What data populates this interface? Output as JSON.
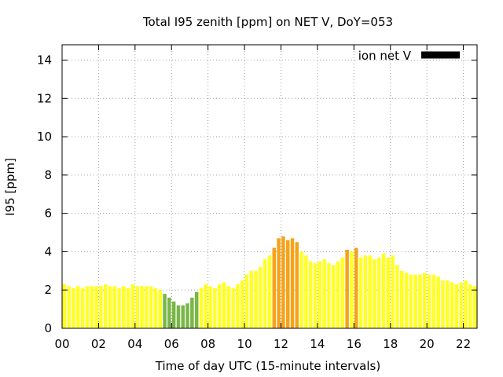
{
  "chart_data": {
    "type": "bar",
    "title": "Total I95 zenith [ppm] on NET V, DoY=053",
    "xlabel": "Time of day UTC (15-minute intervals)",
    "ylabel": "I95 [ppm]",
    "xlim": [
      0,
      22.75
    ],
    "ylim": [
      0,
      14.8
    ],
    "xticks": [
      0,
      2,
      4,
      6,
      8,
      10,
      12,
      14,
      16,
      18,
      20,
      22
    ],
    "xtick_labels": [
      "00",
      "02",
      "04",
      "06",
      "08",
      "10",
      "12",
      "14",
      "16",
      "18",
      "20",
      "22"
    ],
    "yticks": [
      0,
      2,
      4,
      6,
      8,
      10,
      12,
      14
    ],
    "ytick_labels": [
      "0",
      "2",
      "4",
      "6",
      "8",
      "10",
      "12",
      "14"
    ],
    "grid": true,
    "legend": {
      "label": "ion net V",
      "color": "#000000",
      "position": "top-right"
    },
    "bar_interval_hours": 0.25,
    "colors": {
      "green": "#7ab648",
      "yellow": "#ffff26",
      "orange": "#f5a31b"
    },
    "x": [
      0.0,
      0.25,
      0.5,
      0.75,
      1.0,
      1.25,
      1.5,
      1.75,
      2.0,
      2.25,
      2.5,
      2.75,
      3.0,
      3.25,
      3.5,
      3.75,
      4.0,
      4.25,
      4.5,
      4.75,
      5.0,
      5.25,
      5.5,
      5.75,
      6.0,
      6.25,
      6.5,
      6.75,
      7.0,
      7.25,
      7.5,
      7.75,
      8.0,
      8.25,
      8.5,
      8.75,
      9.0,
      9.25,
      9.5,
      9.75,
      10.0,
      10.25,
      10.5,
      10.75,
      11.0,
      11.25,
      11.5,
      11.75,
      12.0,
      12.25,
      12.5,
      12.75,
      13.0,
      13.25,
      13.5,
      13.75,
      14.0,
      14.25,
      14.5,
      14.75,
      15.0,
      15.25,
      15.5,
      15.75,
      16.0,
      16.25,
      16.5,
      16.75,
      17.0,
      17.25,
      17.5,
      17.75,
      18.0,
      18.25,
      18.5,
      18.75,
      19.0,
      19.25,
      19.5,
      19.75,
      20.0,
      20.25,
      20.5,
      20.75,
      21.0,
      21.25,
      21.5,
      21.75,
      22.0,
      22.25,
      22.5
    ],
    "values": [
      2.3,
      2.2,
      2.1,
      2.2,
      2.1,
      2.2,
      2.2,
      2.2,
      2.2,
      2.3,
      2.2,
      2.2,
      2.1,
      2.2,
      2.1,
      2.3,
      2.2,
      2.2,
      2.2,
      2.2,
      2.1,
      2.0,
      1.8,
      1.6,
      1.4,
      1.2,
      1.2,
      1.3,
      1.6,
      1.9,
      2.1,
      2.3,
      2.2,
      2.1,
      2.3,
      2.4,
      2.2,
      2.1,
      2.3,
      2.5,
      2.8,
      3.0,
      3.0,
      3.2,
      3.6,
      3.8,
      4.2,
      4.7,
      4.8,
      4.6,
      4.7,
      4.5,
      4.0,
      3.8,
      3.5,
      3.4,
      3.5,
      3.6,
      3.4,
      3.3,
      3.5,
      3.7,
      4.1,
      4.0,
      4.2,
      3.7,
      3.8,
      3.8,
      3.6,
      3.7,
      3.9,
      3.7,
      3.8,
      3.3,
      3.0,
      2.9,
      2.8,
      2.8,
      2.8,
      2.9,
      2.8,
      2.8,
      2.7,
      2.5,
      2.5,
      2.4,
      2.3,
      2.4,
      2.5,
      2.3,
      2.2
    ],
    "bar_colors": [
      "yellow",
      "yellow",
      "yellow",
      "yellow",
      "yellow",
      "yellow",
      "yellow",
      "yellow",
      "yellow",
      "yellow",
      "yellow",
      "yellow",
      "yellow",
      "yellow",
      "yellow",
      "yellow",
      "yellow",
      "yellow",
      "yellow",
      "yellow",
      "yellow",
      "yellow",
      "green",
      "green",
      "green",
      "green",
      "green",
      "green",
      "green",
      "green",
      "yellow",
      "yellow",
      "yellow",
      "yellow",
      "yellow",
      "yellow",
      "yellow",
      "yellow",
      "yellow",
      "yellow",
      "yellow",
      "yellow",
      "yellow",
      "yellow",
      "yellow",
      "yellow",
      "orange",
      "orange",
      "orange",
      "orange",
      "orange",
      "orange",
      "yellow",
      "yellow",
      "yellow",
      "yellow",
      "yellow",
      "yellow",
      "yellow",
      "yellow",
      "yellow",
      "yellow",
      "orange",
      "yellow",
      "orange",
      "yellow",
      "yellow",
      "yellow",
      "yellow",
      "yellow",
      "yellow",
      "yellow",
      "yellow",
      "yellow",
      "yellow",
      "yellow",
      "yellow",
      "yellow",
      "yellow",
      "yellow",
      "yellow",
      "yellow",
      "yellow",
      "yellow",
      "yellow",
      "yellow",
      "yellow",
      "yellow",
      "yellow",
      "yellow",
      "yellow"
    ]
  }
}
